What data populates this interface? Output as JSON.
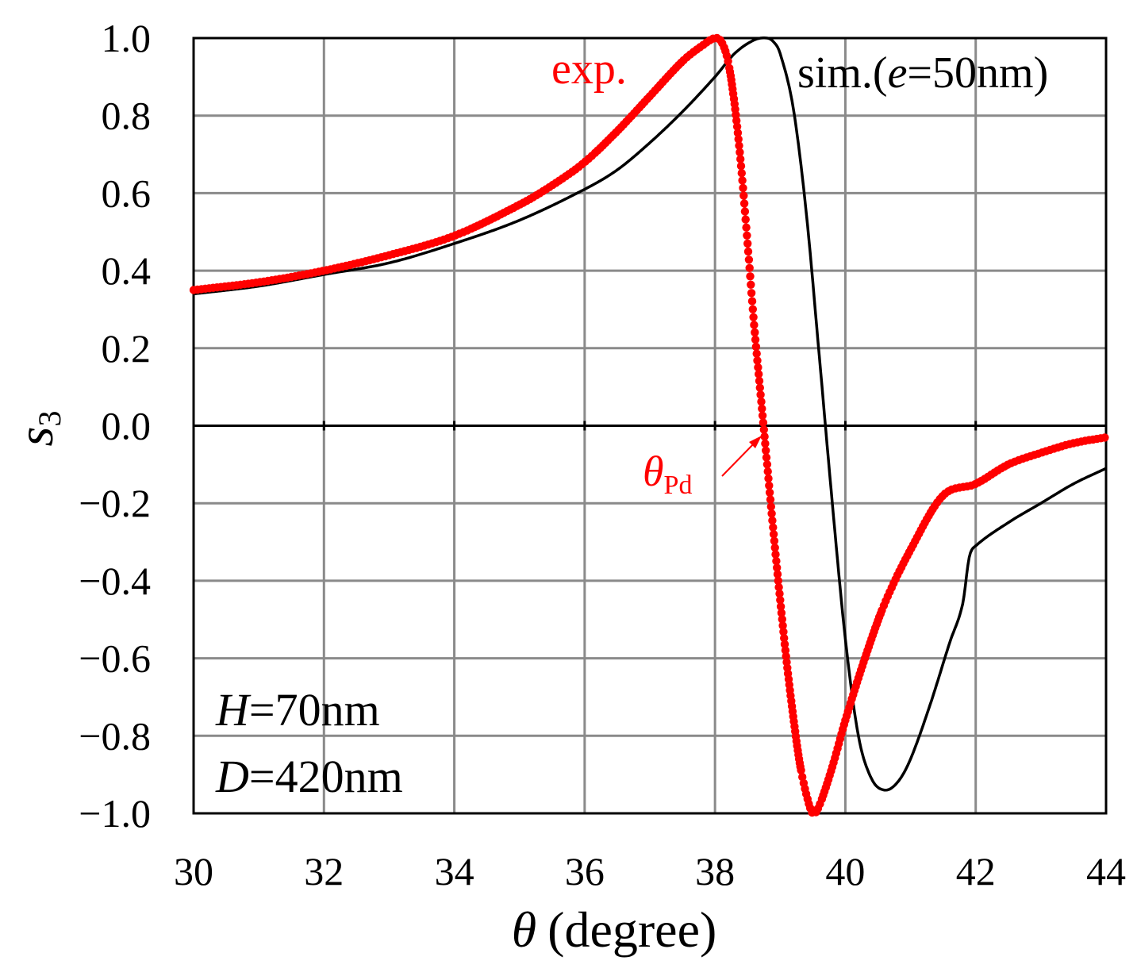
{
  "chart_data": {
    "type": "scatter",
    "xlabel_symbol": "θ",
    "xlabel_unit": "(degree)",
    "ylabel_main": "s",
    "ylabel_sub": "3",
    "xlim": [
      30,
      44
    ],
    "ylim": [
      -1.0,
      1.0
    ],
    "grid": true,
    "x_ticks": [
      30,
      32,
      34,
      36,
      38,
      40,
      42,
      44
    ],
    "x_tick_labels": [
      "30",
      "32",
      "34",
      "36",
      "38",
      "40",
      "42",
      "44"
    ],
    "y_ticks": [
      1.0,
      0.8,
      0.6,
      0.4,
      0.2,
      0.0,
      -0.2,
      -0.4,
      -0.6,
      -0.8,
      -1.0
    ],
    "y_tick_labels": [
      "1.0",
      "0.8",
      "0.6",
      "0.4",
      "0.2",
      "0.0",
      "−0.2",
      "−0.4",
      "−0.6",
      "−0.8",
      "−1.0"
    ],
    "series": [
      {
        "name": "exp.",
        "color": "#ff0000",
        "style": "markers",
        "x": [
          30.0,
          31.0,
          32.0,
          33.0,
          34.0,
          35.0,
          35.5,
          36.0,
          36.5,
          37.0,
          37.5,
          37.8,
          38.0,
          38.1,
          38.2,
          38.3,
          38.4,
          38.5,
          38.6,
          38.7,
          38.8,
          38.9,
          39.0,
          39.1,
          39.2,
          39.3,
          39.4,
          39.5,
          39.6,
          39.8,
          40.0,
          40.3,
          40.6,
          41.0,
          41.5,
          42.0,
          42.5,
          43.0,
          43.5,
          44.0
        ],
        "y": [
          0.35,
          0.37,
          0.4,
          0.44,
          0.49,
          0.57,
          0.62,
          0.68,
          0.76,
          0.85,
          0.94,
          0.98,
          1.0,
          0.99,
          0.94,
          0.83,
          0.67,
          0.47,
          0.26,
          0.08,
          -0.1,
          -0.28,
          -0.45,
          -0.61,
          -0.75,
          -0.87,
          -0.95,
          -1.0,
          -0.98,
          -0.88,
          -0.76,
          -0.6,
          -0.46,
          -0.32,
          -0.18,
          -0.15,
          -0.1,
          -0.07,
          -0.045,
          -0.03
        ]
      },
      {
        "name": "sim.(e=50nm)",
        "color": "#000000",
        "style": "line",
        "x": [
          30.0,
          31.0,
          32.0,
          33.0,
          34.0,
          35.0,
          36.0,
          36.5,
          37.0,
          37.5,
          38.0,
          38.3,
          38.6,
          38.8,
          38.9,
          39.0,
          39.2,
          39.4,
          39.6,
          39.8,
          40.0,
          40.2,
          40.4,
          40.6,
          40.8,
          41.0,
          41.3,
          41.6,
          41.8,
          41.9,
          42.0,
          42.5,
          43.0,
          43.5,
          44.0
        ],
        "y": [
          0.34,
          0.36,
          0.39,
          0.42,
          0.47,
          0.53,
          0.61,
          0.66,
          0.73,
          0.81,
          0.9,
          0.96,
          0.995,
          1.0,
          0.99,
          0.96,
          0.82,
          0.55,
          0.18,
          -0.2,
          -0.55,
          -0.8,
          -0.91,
          -0.94,
          -0.92,
          -0.86,
          -0.72,
          -0.56,
          -0.46,
          -0.34,
          -0.31,
          -0.25,
          -0.2,
          -0.15,
          -0.11
        ]
      }
    ],
    "annotations": {
      "exp_label": "exp.",
      "sim_prefix": "sim.(",
      "sim_var": "e",
      "sim_suffix": "=50nm)",
      "theta_symbol": "θ",
      "theta_sub": "Pd",
      "H_var": "H",
      "H_value": "=70nm",
      "D_var": "D",
      "D_value": "=420nm"
    }
  }
}
